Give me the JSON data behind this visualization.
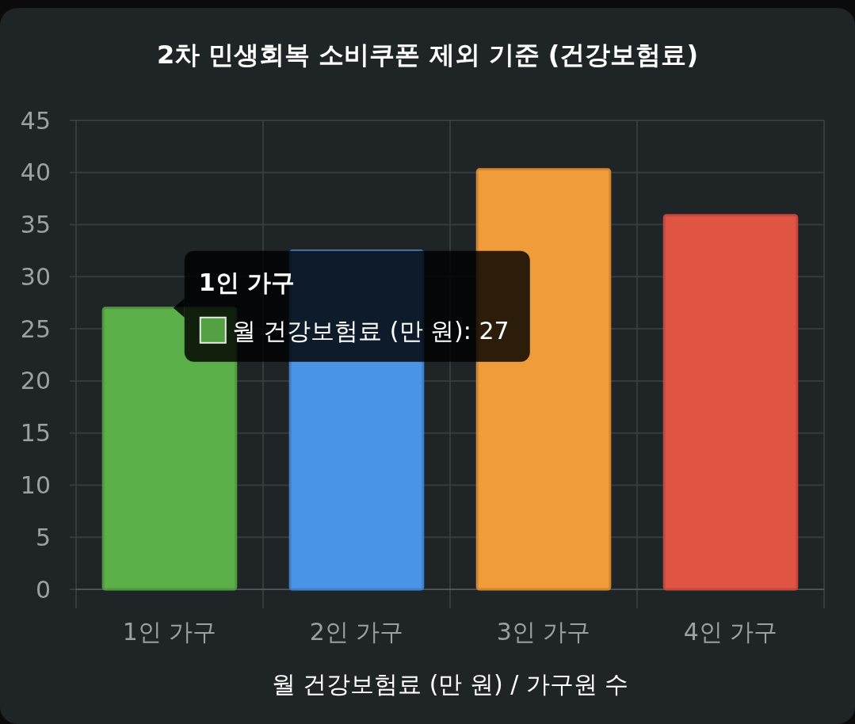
{
  "chart_data": {
    "type": "bar",
    "title": "2차 민생회복 소비쿠폰 제외 기준 (건강보험료)",
    "xlabel": "월 건강보험료 (만 원) / 가구원 수",
    "categories": [
      "1인 가구",
      "2인 가구",
      "3인 가구",
      "4인 가구"
    ],
    "series": [
      {
        "values": [
          27,
          32.5,
          40.3,
          35.9
        ],
        "colors": [
          "#5cb04a",
          "#4a94e8",
          "#f09c3a",
          "#e05444"
        ]
      }
    ],
    "annotations": [
      {
        "text": "1인 가구",
        "x": "1인 가구",
        "y": 27
      },
      "월 건강보험료 (만 원): 27"
    ],
    "ylim": [
      0,
      45
    ],
    "yticks": [
      0,
      5,
      10,
      15,
      20,
      25,
      30,
      35,
      40,
      45
    ],
    "grid": true
  }
}
